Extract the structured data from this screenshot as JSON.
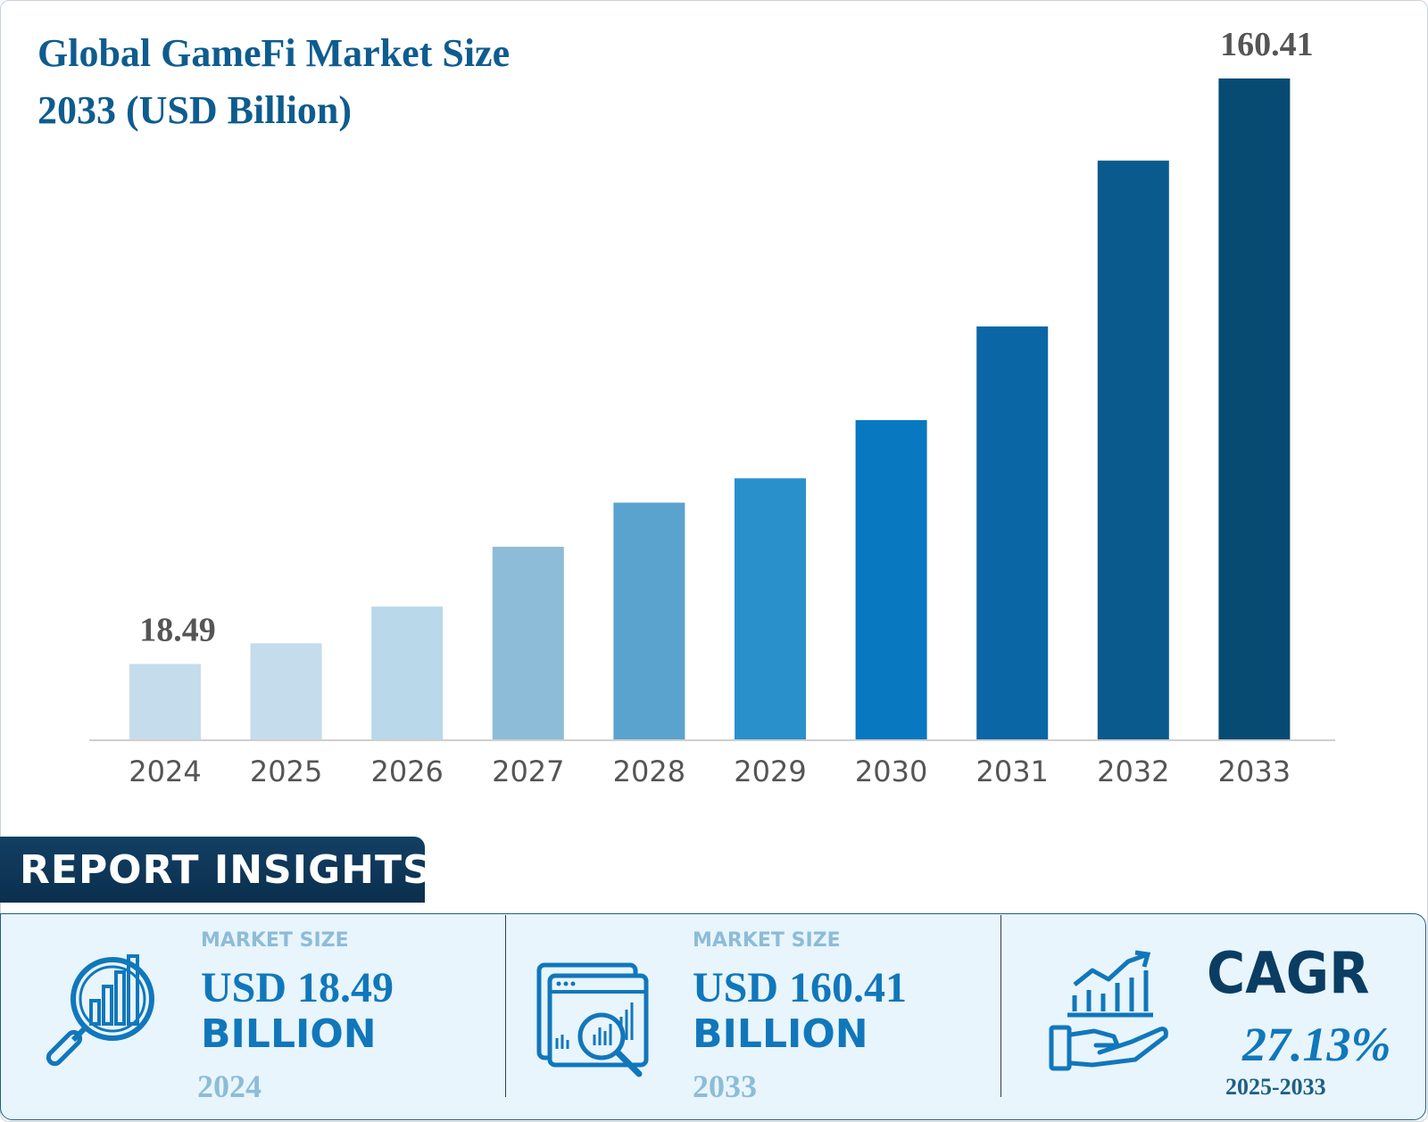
{
  "title_line1": "Global GameFi Market Size",
  "title_line2": "2033 (USD Billion)",
  "chart_data": {
    "type": "bar",
    "categories": [
      "2024",
      "2025",
      "2026",
      "2027",
      "2028",
      "2029",
      "2030",
      "2031",
      "2032",
      "2033"
    ],
    "values": [
      18.49,
      23.5,
      32.4,
      46.9,
      57.6,
      63.5,
      77.6,
      100.3,
      140.5,
      160.41
    ],
    "data_labels": [
      {
        "category": "2024",
        "text": "18.49"
      },
      {
        "category": "2033",
        "text": "160.41"
      }
    ],
    "bar_colors": [
      "#c5dcec",
      "#c5dcec",
      "#b9d8ea",
      "#8dbcd8",
      "#5aa3cf",
      "#2a90cc",
      "#0878c0",
      "#0b66a6",
      "#0a5a8e",
      "#074b73"
    ],
    "ylim": [
      0,
      160.41
    ],
    "grid": false,
    "legend": "none"
  },
  "insights": {
    "header": "REPORT INSIGHTS",
    "left": {
      "label": "MARKET SIZE",
      "usd": "USD 18.49",
      "unit": "BILLION",
      "year": "2024"
    },
    "middle": {
      "label": "MARKET SIZE",
      "usd": "USD 160.41",
      "unit": "BILLION",
      "year": "2033"
    },
    "right": {
      "label": "CAGR",
      "value": "27.13%",
      "range": "2025-2033"
    }
  },
  "colors": {
    "title": "#0e5c8f",
    "accent": "#1177bb",
    "dark": "#0b3d63",
    "light_text": "#8dbcd8"
  },
  "icons": [
    "magnifier-chart-icon",
    "dashboard-analysis-icon",
    "hand-growth-chart-icon"
  ]
}
